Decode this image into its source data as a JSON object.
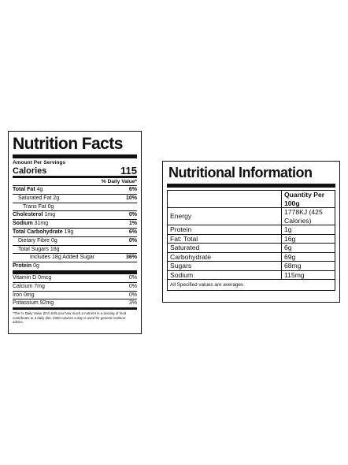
{
  "nutrition_facts": {
    "title": "Nutrition Facts",
    "amount_label": "Amount Per Servings",
    "calories_label": "Calories",
    "calories_value": "115",
    "dv_header": "% Daily Value*",
    "rows": [
      {
        "label": "Total Fat",
        "amount": "4g",
        "pct": "6%"
      },
      {
        "label": "Saturated Fat",
        "amount": "2g",
        "pct": "10%"
      },
      {
        "label": "Trans Fat",
        "amount": "0g",
        "pct": ""
      },
      {
        "label": "Cholesterol",
        "amount": "1mg",
        "pct": "0%"
      },
      {
        "label": "Sodium",
        "amount": "31mg",
        "pct": "1%"
      },
      {
        "label": "Total Carbohydrate",
        "amount": "19g",
        "pct": "6%"
      },
      {
        "label": "Dietary Fibre",
        "amount": "0g",
        "pct": "0%"
      },
      {
        "label": "Total Sugars",
        "amount": "18g",
        "pct": ""
      },
      {
        "label": "Includes",
        "amount": "18g Added Sugar",
        "pct": "36%"
      },
      {
        "label": "Protein",
        "amount": "0g",
        "pct": ""
      },
      {
        "label": "Vitamin D",
        "amount": "0mcg",
        "pct": "0%"
      },
      {
        "label": "Calcium",
        "amount": "7mg",
        "pct": "0%"
      },
      {
        "label": "Iron",
        "amount": "0mg",
        "pct": "0%"
      },
      {
        "label": "Potassium",
        "amount": "92mg",
        "pct": "3%"
      }
    ],
    "footnote": "*The % Daily Value (DV) tells you how much a nutrient in a serving of food contributes to a daily diet. 2000 calories a day is used for general nutrition advice."
  },
  "nutritional_information": {
    "title": "Nutritional Information",
    "header": {
      "label": "",
      "value": "Quantity Per 100g"
    },
    "rows": [
      {
        "label": "Energy",
        "value": "1778KJ (425 Calories)"
      },
      {
        "label": "Protein",
        "value": "1g"
      },
      {
        "label": "Fat: Total",
        "value": "16g"
      },
      {
        "label": "Saturated",
        "value": "6g"
      },
      {
        "label": "Carbohydrate",
        "value": "69g"
      },
      {
        "label": "Sugars",
        "value": "68mg"
      },
      {
        "label": "Sodium",
        "value": "115mg"
      }
    ],
    "note": "All Specified values are averages"
  }
}
